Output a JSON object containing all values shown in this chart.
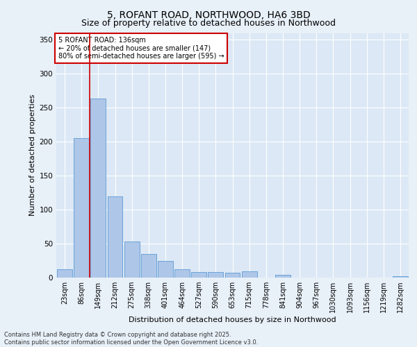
{
  "title_line1": "5, ROFANT ROAD, NORTHWOOD, HA6 3BD",
  "title_line2": "Size of property relative to detached houses in Northwood",
  "xlabel": "Distribution of detached houses by size in Northwood",
  "ylabel": "Number of detached properties",
  "categories": [
    "23sqm",
    "86sqm",
    "149sqm",
    "212sqm",
    "275sqm",
    "338sqm",
    "401sqm",
    "464sqm",
    "527sqm",
    "590sqm",
    "653sqm",
    "715sqm",
    "778sqm",
    "841sqm",
    "904sqm",
    "967sqm",
    "1030sqm",
    "1093sqm",
    "1156sqm",
    "1219sqm",
    "1282sqm"
  ],
  "values": [
    12,
    205,
    263,
    120,
    53,
    35,
    25,
    12,
    8,
    8,
    7,
    9,
    0,
    4,
    0,
    0,
    0,
    0,
    0,
    0,
    2
  ],
  "bar_color": "#aec6e8",
  "bar_edge_color": "#5b9bd5",
  "vline_color": "#cc0000",
  "annotation_text": "5 ROFANT ROAD: 136sqm\n← 20% of detached houses are smaller (147)\n80% of semi-detached houses are larger (595) →",
  "annotation_box_color": "#cc0000",
  "ylim": [
    0,
    360
  ],
  "yticks": [
    0,
    50,
    100,
    150,
    200,
    250,
    300,
    350
  ],
  "fig_background_color": "#e8f0f8",
  "ax_background_color": "#dce8f5",
  "grid_color": "#ffffff",
  "footer_line1": "Contains HM Land Registry data © Crown copyright and database right 2025.",
  "footer_line2": "Contains public sector information licensed under the Open Government Licence v3.0.",
  "title1_fontsize": 10,
  "title2_fontsize": 9,
  "ylabel_fontsize": 8,
  "xlabel_fontsize": 8,
  "tick_fontsize": 7,
  "annotation_fontsize": 7,
  "footer_fontsize": 6
}
